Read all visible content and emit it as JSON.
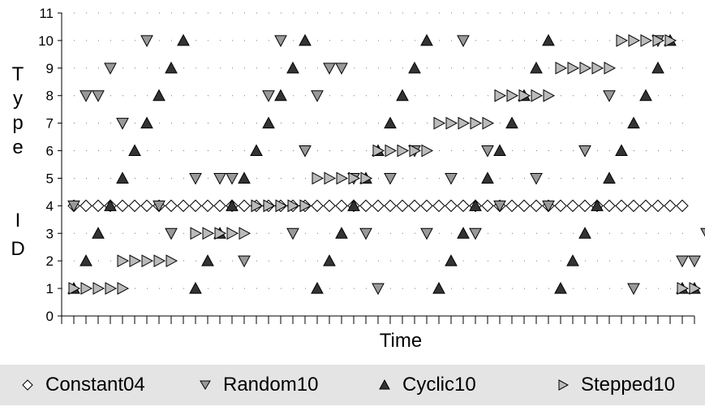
{
  "chart_data": {
    "type": "scatter",
    "title": "",
    "xlabel": "Time",
    "ylabel": "Type ID",
    "xlim": [
      0,
      52
    ],
    "ylim": [
      0,
      11
    ],
    "y_ticks": [
      0,
      1,
      2,
      3,
      4,
      5,
      6,
      7,
      8,
      9,
      10,
      11
    ],
    "x_tick_labels": "none",
    "grid": "dotted",
    "legend": "bottom",
    "series": [
      {
        "name": "Constant04",
        "marker": "diamond-open",
        "color": "#ffffff",
        "x": [
          1,
          2,
          3,
          4,
          5,
          6,
          7,
          8,
          9,
          10,
          11,
          12,
          13,
          14,
          15,
          16,
          17,
          18,
          19,
          20,
          21,
          22,
          23,
          24,
          25,
          26,
          27,
          28,
          29,
          30,
          31,
          32,
          33,
          34,
          35,
          36,
          37,
          38,
          39,
          40,
          41,
          42,
          43,
          44,
          45,
          46,
          47,
          48,
          49,
          50,
          51
        ],
        "y": [
          4,
          4,
          4,
          4,
          4,
          4,
          4,
          4,
          4,
          4,
          4,
          4,
          4,
          4,
          4,
          4,
          4,
          4,
          4,
          4,
          4,
          4,
          4,
          4,
          4,
          4,
          4,
          4,
          4,
          4,
          4,
          4,
          4,
          4,
          4,
          4,
          4,
          4,
          4,
          4,
          4,
          4,
          4,
          4,
          4,
          4,
          4,
          4,
          4,
          4,
          4
        ]
      },
      {
        "name": "Random10",
        "marker": "triangle-down",
        "color": "#999999",
        "x": [
          1,
          2,
          3,
          4,
          5,
          7,
          9,
          8,
          11,
          13,
          14,
          15,
          17,
          18,
          19,
          20,
          21,
          22,
          23,
          24,
          25,
          26,
          27,
          29,
          30,
          32,
          33,
          34,
          35,
          36,
          39,
          40,
          43,
          45,
          47,
          49,
          51,
          52,
          53
        ],
        "y": [
          4,
          8,
          8,
          9,
          7,
          10,
          3,
          4,
          5,
          5,
          5,
          2,
          8,
          10,
          3,
          6,
          8,
          9,
          9,
          5,
          3,
          1,
          5,
          6,
          3,
          5,
          10,
          3,
          6,
          4,
          5,
          4,
          6,
          8,
          1,
          10,
          2,
          2,
          3
        ]
      },
      {
        "name": "Cyclic10",
        "marker": "triangle-up",
        "color": "#333333",
        "x": [
          1,
          2,
          3,
          4,
          5,
          6,
          7,
          8,
          9,
          10,
          11,
          12,
          13,
          14,
          15,
          16,
          17,
          18,
          19,
          20,
          21,
          22,
          23,
          24,
          25,
          26,
          27,
          28,
          29,
          30,
          31,
          32,
          33,
          34,
          35,
          36,
          37,
          38,
          39,
          40,
          41,
          42,
          43,
          44,
          45,
          46,
          47,
          48,
          49,
          50,
          51,
          52
        ],
        "y": [
          1,
          2,
          3,
          4,
          5,
          6,
          7,
          8,
          9,
          10,
          1,
          2,
          3,
          4,
          5,
          6,
          7,
          8,
          9,
          10,
          1,
          2,
          3,
          4,
          5,
          6,
          7,
          8,
          9,
          10,
          1,
          2,
          3,
          4,
          5,
          6,
          7,
          8,
          9,
          10,
          1,
          2,
          3,
          4,
          5,
          6,
          7,
          8,
          9,
          10,
          1,
          1
        ]
      },
      {
        "name": "Stepped10",
        "marker": "triangle-right",
        "color": "#bbbbbb",
        "x": [
          1,
          2,
          3,
          4,
          5,
          5,
          6,
          7,
          8,
          9,
          11,
          12,
          13,
          14,
          15,
          16,
          17,
          18,
          19,
          20,
          21,
          22,
          23,
          24,
          25,
          26,
          27,
          28,
          29,
          30,
          31,
          32,
          33,
          34,
          35,
          36,
          37,
          38,
          39,
          40,
          41,
          42,
          43,
          44,
          45,
          46,
          47,
          48,
          49,
          50,
          51,
          52
        ],
        "y": [
          1,
          1,
          1,
          1,
          1,
          2,
          2,
          2,
          2,
          2,
          3,
          3,
          3,
          3,
          3,
          4,
          4,
          4,
          4,
          4,
          5,
          5,
          5,
          5,
          5,
          6,
          6,
          6,
          6,
          6,
          7,
          7,
          7,
          7,
          7,
          8,
          8,
          8,
          8,
          8,
          9,
          9,
          9,
          9,
          9,
          10,
          10,
          10,
          10,
          10,
          1,
          1
        ]
      }
    ]
  }
}
